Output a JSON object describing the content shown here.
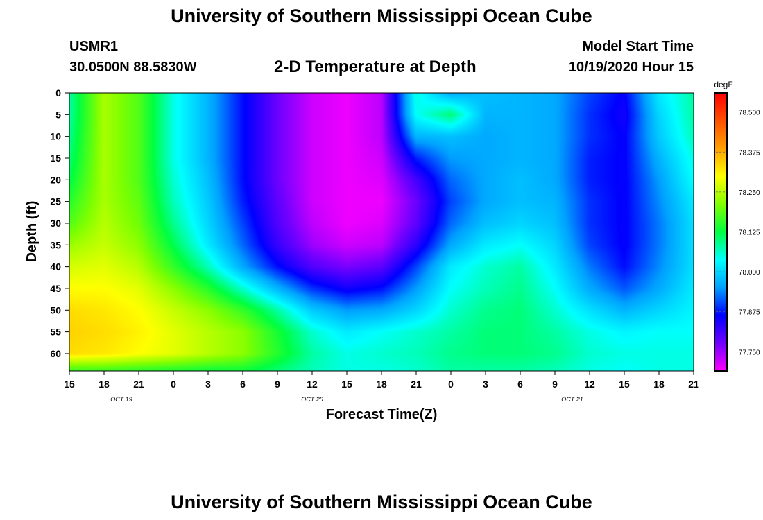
{
  "header": {
    "title": "University of Southern Mississippi Ocean Cube",
    "station_id": "USMR1",
    "station_location": "30.0500N 88.5830W",
    "plot_title": "2-D Temperature at Depth",
    "model_label": "Model Start Time",
    "model_time": "10/19/2020 Hour 15"
  },
  "footer": {
    "title": "University of Southern Mississippi Ocean Cube"
  },
  "chart_data": {
    "type": "heatmap",
    "xlabel": "Forecast Time(Z)",
    "ylabel": "Depth (ft)",
    "colorbar_unit": "degF",
    "x_range_hours": [
      0,
      54
    ],
    "x_ticks": [
      "15",
      "18",
      "21",
      "0",
      "3",
      "6",
      "9",
      "12",
      "15",
      "18",
      "21",
      "0",
      "3",
      "6",
      "9",
      "12",
      "15",
      "18",
      "21"
    ],
    "date_labels": [
      {
        "label": "OCT 19",
        "at_tick": 1.5
      },
      {
        "label": "OCT 20",
        "at_tick": 7
      },
      {
        "label": "OCT 21",
        "at_tick": 14.5
      }
    ],
    "y_ticks": [
      0,
      5,
      10,
      15,
      20,
      25,
      30,
      35,
      40,
      45,
      50,
      55,
      60
    ],
    "ylim": [
      0,
      64
    ],
    "colorbar_ticks": [
      77.75,
      77.875,
      78.0,
      78.125,
      78.25,
      78.375,
      78.5
    ],
    "colorbar_range": [
      77.69,
      78.56
    ],
    "colormap": [
      "#ff00ff",
      "#7000ff",
      "#0000ff",
      "#00a0ff",
      "#00ffff",
      "#00ff40",
      "#80ff00",
      "#ffff00",
      "#ffa000",
      "#ff5000",
      "#ff0000"
    ],
    "field_rows_depth_ft": [
      0,
      5,
      10,
      15,
      20,
      25,
      30,
      35,
      40,
      45,
      50,
      55,
      60,
      64
    ],
    "field_cols_hour": [
      0,
      3,
      6,
      9,
      12,
      15,
      18,
      21,
      24,
      27,
      30,
      33,
      36,
      39,
      42,
      45,
      48,
      51,
      54
    ],
    "values": [
      [
        78.08,
        78.24,
        78.18,
        78.05,
        77.97,
        77.87,
        77.78,
        77.72,
        77.7,
        77.73,
        78.05,
        77.96,
        77.98,
        77.97,
        77.96,
        77.9,
        77.86,
        78.02,
        78.08
      ],
      [
        78.08,
        78.24,
        78.18,
        78.05,
        77.97,
        77.87,
        77.78,
        77.72,
        77.7,
        77.73,
        78.04,
        78.1,
        77.97,
        77.97,
        77.96,
        77.89,
        77.85,
        78.0,
        78.08
      ],
      [
        78.09,
        78.24,
        78.18,
        78.05,
        77.97,
        77.87,
        77.78,
        77.72,
        77.7,
        77.73,
        77.97,
        77.98,
        77.96,
        77.97,
        77.96,
        77.89,
        77.86,
        77.99,
        78.07
      ],
      [
        78.1,
        78.24,
        78.18,
        78.05,
        77.97,
        77.87,
        77.78,
        77.72,
        77.7,
        77.72,
        77.88,
        77.95,
        77.96,
        77.97,
        77.96,
        77.88,
        77.86,
        77.97,
        78.05
      ],
      [
        78.12,
        78.24,
        78.18,
        78.06,
        77.98,
        77.87,
        77.78,
        77.72,
        77.7,
        77.71,
        77.81,
        77.92,
        77.96,
        77.98,
        77.96,
        77.88,
        77.86,
        77.95,
        78.04
      ],
      [
        78.15,
        78.24,
        78.19,
        78.07,
        77.99,
        77.88,
        77.79,
        77.72,
        77.7,
        77.7,
        77.78,
        77.9,
        77.96,
        77.98,
        77.97,
        77.89,
        77.86,
        77.94,
        78.02
      ],
      [
        78.18,
        78.25,
        78.2,
        78.09,
        78.0,
        77.9,
        77.8,
        77.73,
        77.7,
        77.71,
        77.79,
        77.92,
        77.98,
        78.0,
        77.98,
        77.89,
        77.86,
        77.93,
        78.01
      ],
      [
        78.23,
        78.26,
        78.22,
        78.12,
        78.02,
        77.92,
        77.82,
        77.75,
        77.72,
        77.73,
        77.83,
        77.96,
        78.02,
        78.04,
        78.0,
        77.9,
        77.86,
        77.93,
        78.01
      ],
      [
        78.27,
        78.28,
        78.25,
        78.16,
        78.07,
        77.96,
        77.87,
        77.8,
        77.77,
        77.79,
        77.9,
        78.02,
        78.06,
        78.08,
        78.02,
        77.93,
        77.87,
        77.94,
        78.01
      ],
      [
        78.3,
        78.3,
        78.28,
        78.22,
        78.15,
        78.06,
        77.97,
        77.89,
        77.85,
        77.87,
        77.95,
        78.04,
        78.07,
        78.09,
        78.04,
        77.96,
        77.91,
        77.96,
        78.02
      ],
      [
        78.33,
        78.32,
        78.3,
        78.26,
        78.22,
        78.16,
        78.08,
        77.99,
        77.95,
        77.96,
        78.0,
        78.06,
        78.09,
        78.1,
        78.06,
        78.01,
        77.97,
        78.0,
        78.03
      ],
      [
        78.34,
        78.33,
        78.31,
        78.28,
        78.25,
        78.22,
        78.14,
        78.06,
        78.02,
        78.04,
        78.06,
        78.08,
        78.1,
        78.1,
        78.08,
        78.05,
        78.03,
        78.04,
        78.04
      ],
      [
        78.33,
        78.32,
        78.3,
        78.28,
        78.25,
        78.22,
        78.15,
        78.08,
        78.05,
        78.06,
        78.07,
        78.09,
        78.1,
        78.1,
        78.09,
        78.06,
        78.05,
        78.05,
        78.05
      ],
      [
        78.16,
        78.16,
        78.15,
        78.14,
        78.13,
        78.13,
        78.1,
        78.07,
        78.05,
        78.05,
        78.06,
        78.08,
        78.08,
        78.08,
        78.07,
        78.05,
        78.04,
        78.05,
        78.05
      ]
    ]
  }
}
